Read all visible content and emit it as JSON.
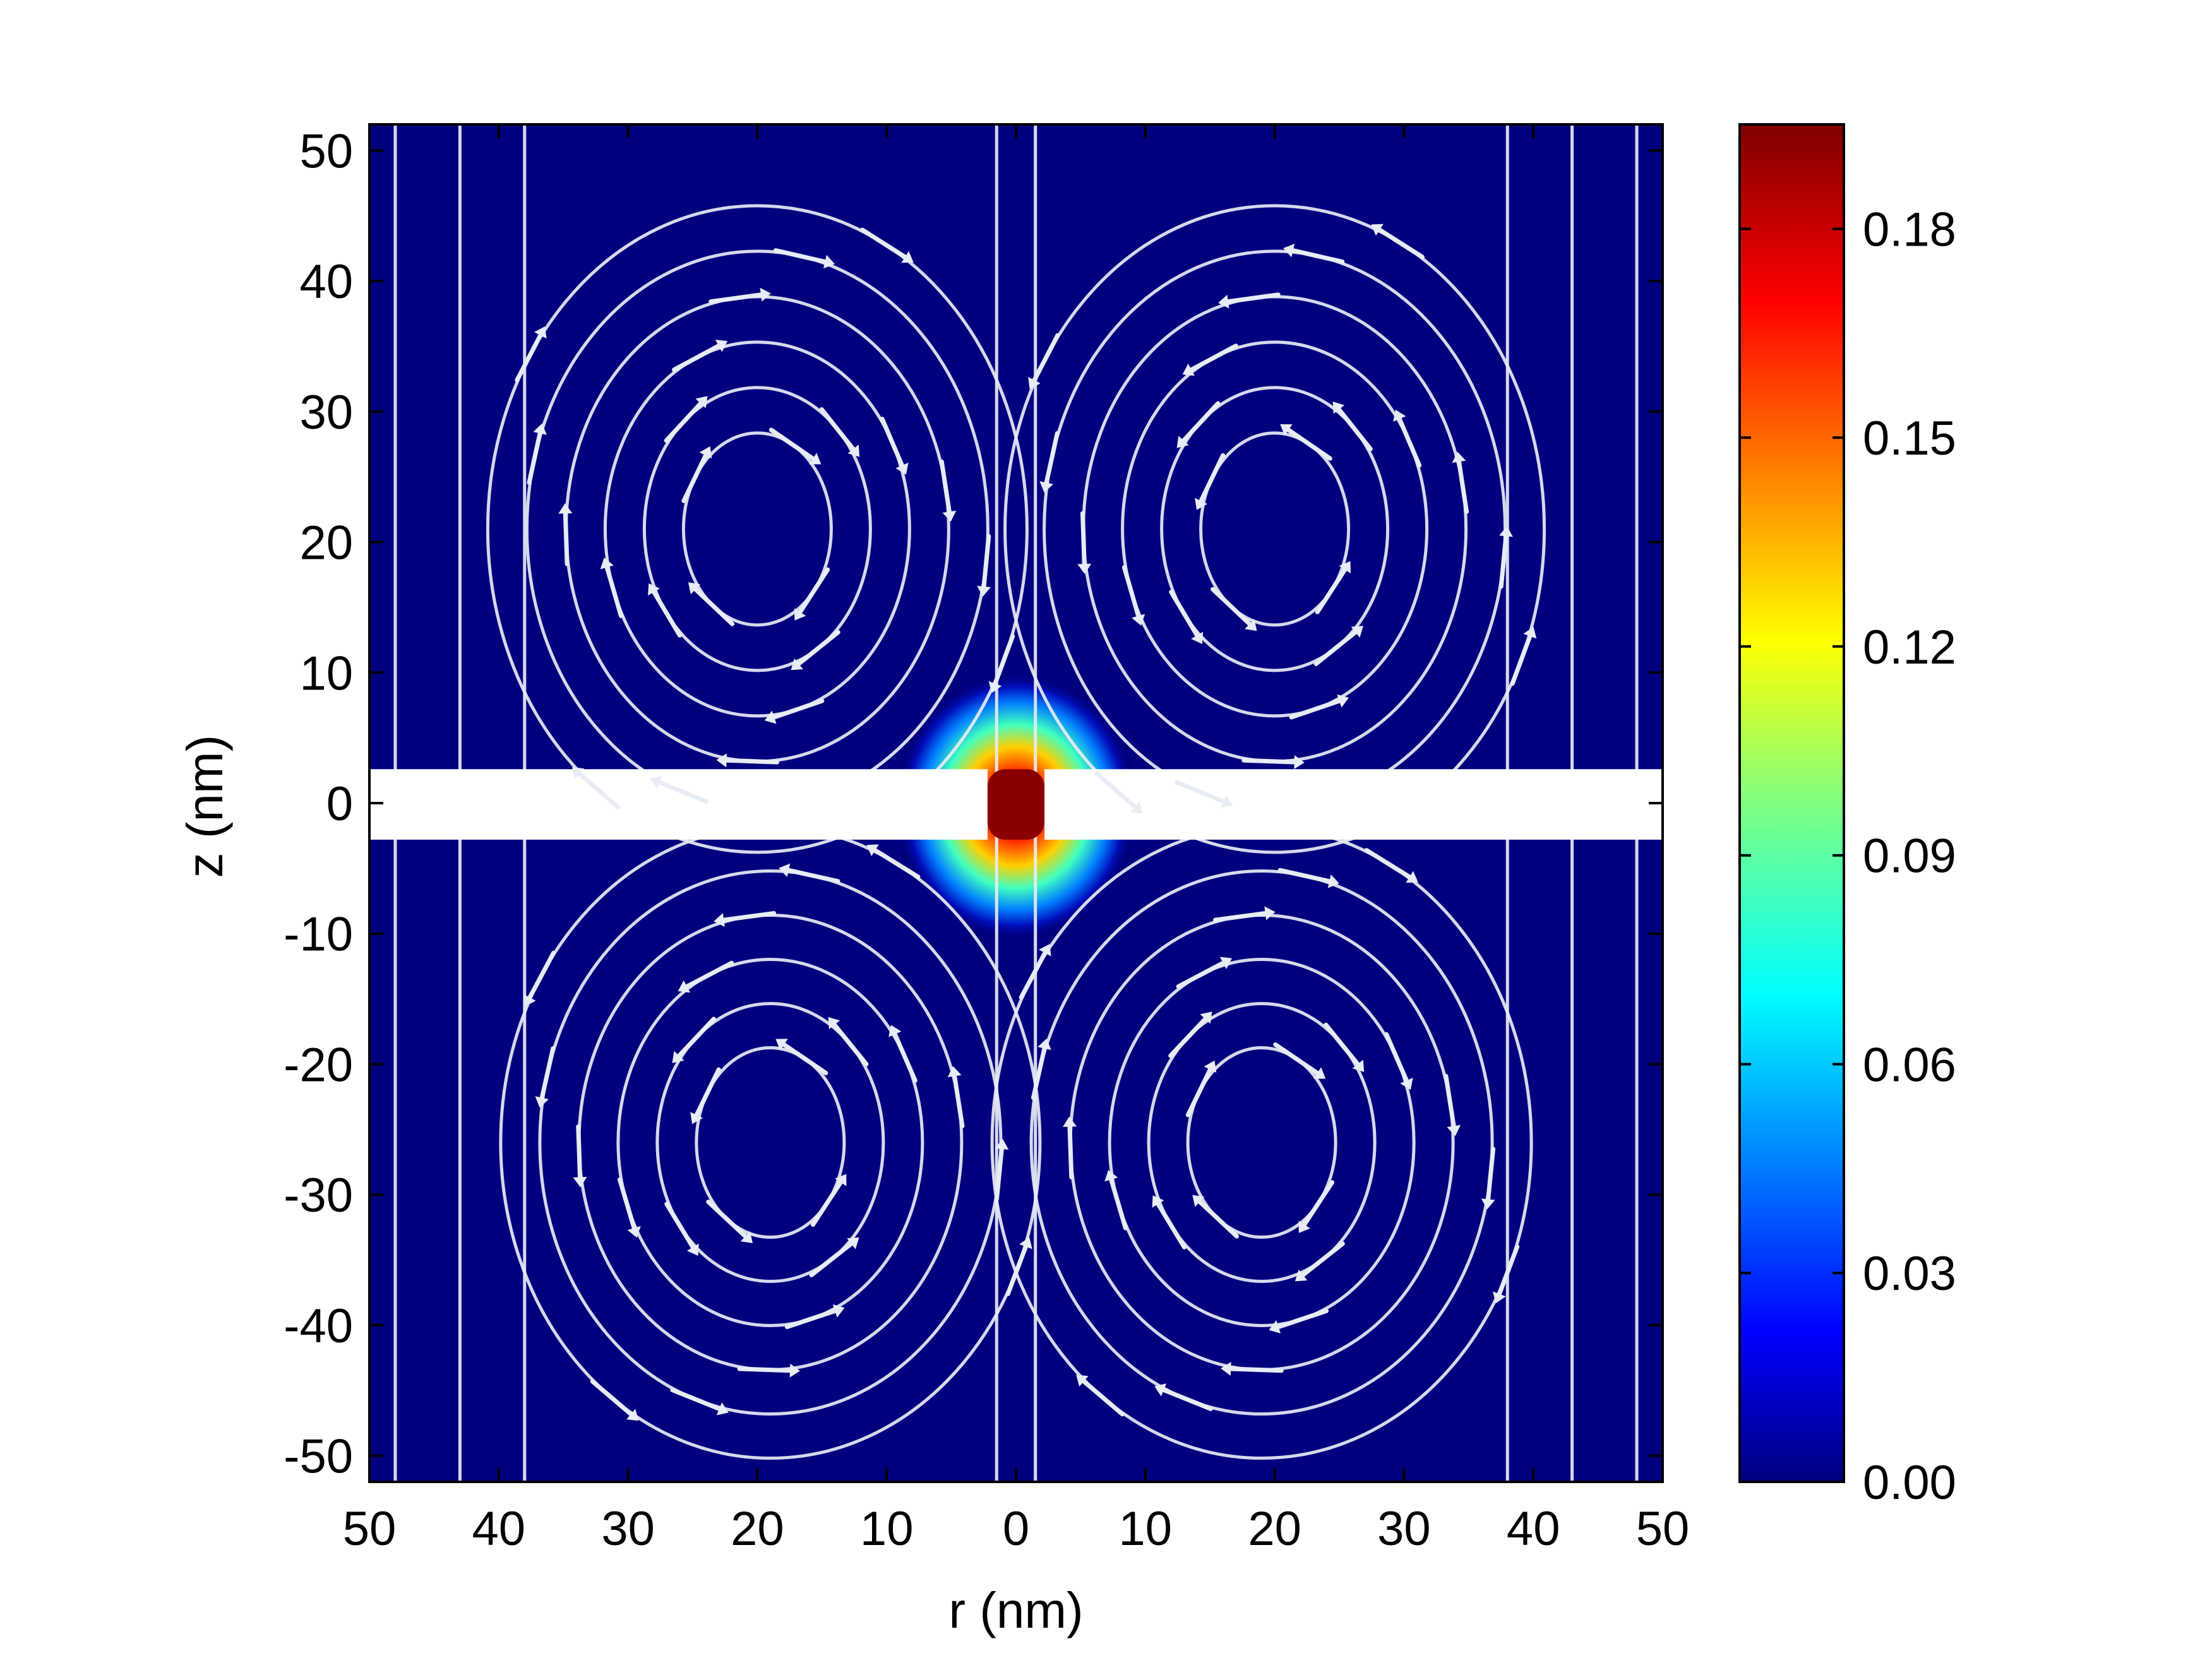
{
  "chart_data": {
    "type": "heatmap",
    "title": "",
    "xlabel": "r (nm)",
    "ylabel": "z (nm)",
    "xlim": [
      -50,
      50
    ],
    "ylim": [
      -52,
      52
    ],
    "x_ticks": [
      -50,
      -40,
      -30,
      -20,
      -10,
      0,
      10,
      20,
      30,
      40,
      50
    ],
    "x_tick_labels": [
      "50",
      "40",
      "30",
      "20",
      "10",
      "0",
      "10",
      "20",
      "30",
      "40",
      "50"
    ],
    "y_ticks": [
      50,
      40,
      30,
      20,
      10,
      0,
      -10,
      -20,
      -30,
      -40,
      -50
    ],
    "y_tick_labels": [
      "50",
      "40",
      "30",
      "20",
      "10",
      "0",
      "-10",
      "-20",
      "-30",
      "-40",
      "-50"
    ],
    "colorbar": {
      "colormap": "jet",
      "range": [
        0,
        0.195
      ],
      "ticks": [
        0.0,
        0.03,
        0.06,
        0.09,
        0.12,
        0.15,
        0.18
      ],
      "tick_labels": [
        "0.00",
        "0.03",
        "0.06",
        "0.09",
        "0.12",
        "0.15",
        "0.18"
      ]
    },
    "membrane": {
      "z_range": [
        -2.8,
        2.6
      ],
      "pore_radius": 2.2,
      "color": "#ffffff"
    },
    "field": {
      "background_value": 0.0,
      "peak_value": 0.195,
      "peak_location": {
        "r": 0,
        "z": 0
      }
    },
    "overlay": "streamlines with white arrows (velocity field), four counter-rotating vortices centred near r = ±20 nm, z = ±22 nm",
    "vortex_centers": [
      {
        "r": -20,
        "z": 21
      },
      {
        "r": 20,
        "z": 21
      },
      {
        "r": -19,
        "z": -26
      },
      {
        "r": 19,
        "z": -26
      }
    ],
    "grid": false
  },
  "colors": {
    "background_field": "#00007f",
    "streamline": "#e8ecf4",
    "membrane": "#ffffff",
    "axes": "#000000"
  }
}
